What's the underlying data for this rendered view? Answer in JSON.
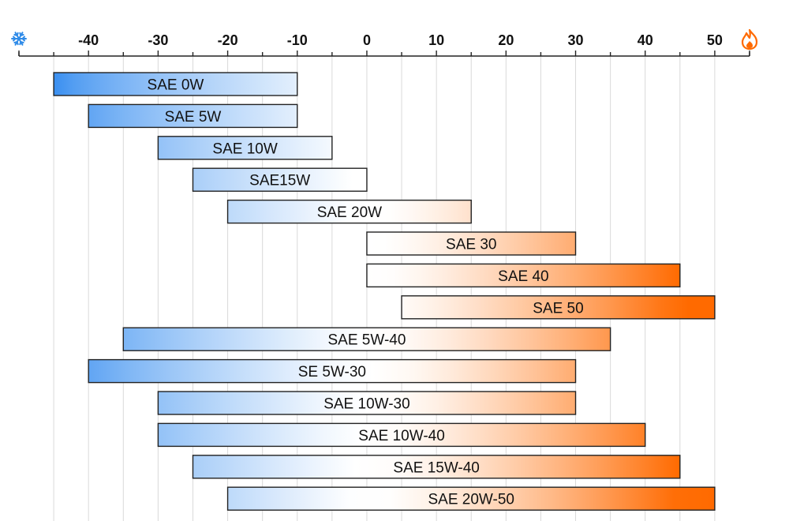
{
  "chart_data": {
    "type": "bar",
    "orientation": "horizontal-range",
    "title": "",
    "xlabel": "",
    "ylabel": "",
    "xlim": [
      -50,
      55
    ],
    "x_ticks": [
      -40,
      -30,
      -20,
      -10,
      0,
      10,
      20,
      30,
      40,
      50
    ],
    "grid": true,
    "cold_icon": "snowflake-icon",
    "hot_icon": "flame-icon",
    "colors": {
      "cold": "#3a8ff0",
      "hot": "#ff6a00",
      "mid": "#ffffff",
      "border": "#222222",
      "grid": "#d9d9d9"
    },
    "bars": [
      {
        "label": "SAE 0W",
        "start": -45,
        "end": -10
      },
      {
        "label": "SAE 5W",
        "start": -40,
        "end": -10
      },
      {
        "label": "SAE 10W",
        "start": -30,
        "end": -5
      },
      {
        "label": "SAE15W",
        "start": -25,
        "end": 0
      },
      {
        "label": "SAE 20W",
        "start": -20,
        "end": 15
      },
      {
        "label": "SAE 30",
        "start": 0,
        "end": 30
      },
      {
        "label": "SAE 40",
        "start": 0,
        "end": 45
      },
      {
        "label": "SAE 50",
        "start": 5,
        "end": 50
      },
      {
        "label": "SAE 5W-40",
        "start": -35,
        "end": 35
      },
      {
        "label": "SE 5W-30",
        "start": -40,
        "end": 30
      },
      {
        "label": "SAE 10W-30",
        "start": -30,
        "end": 30
      },
      {
        "label": "SAE 10W-40",
        "start": -30,
        "end": 40
      },
      {
        "label": "SAE 15W-40",
        "start": -25,
        "end": 45
      },
      {
        "label": "SAE 20W-50",
        "start": -20,
        "end": 50
      }
    ]
  }
}
